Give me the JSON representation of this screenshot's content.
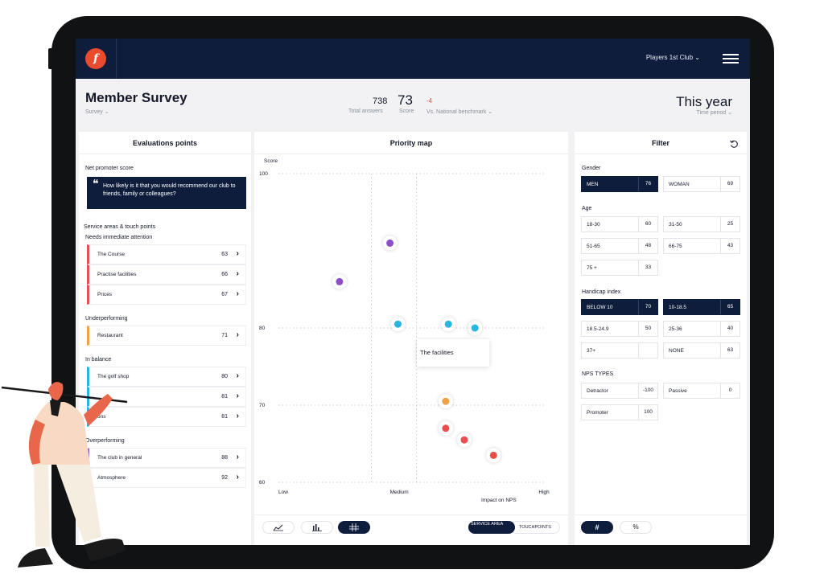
{
  "topbar": {
    "club_selector": "Players 1st Club ⌄",
    "logo_text": "f"
  },
  "header": {
    "title": "Member Survey",
    "subtitle": "Survey ⌄",
    "total_answers": "738",
    "total_answers_label": "Total answers",
    "score": "73",
    "score_label": "Score",
    "benchmark_value": "-4",
    "benchmark_label": "Vs. National benchmark ⌄",
    "time_period": "This year",
    "time_period_label": "Time period ⌄"
  },
  "evaluations": {
    "title": "Evaluations points",
    "nps_label": "Net promoter score",
    "nps_question": "How likely is it that you would recommend our club to friends, family or colleagues?",
    "service_label": "Service areas & touch points",
    "groups": [
      {
        "name": "Needs immediate attention",
        "color": "#e8504f",
        "items": [
          {
            "label": "The Course",
            "value": "63"
          },
          {
            "label": "Practise facilities",
            "value": "66"
          },
          {
            "label": "Prices",
            "value": "67"
          }
        ]
      },
      {
        "name": "Underperforming",
        "color": "#f3a04b",
        "items": [
          {
            "label": "Restaurant",
            "value": "71"
          }
        ]
      },
      {
        "name": "In balance",
        "color": "#2ab4e0",
        "items": [
          {
            "label": "The golf shop",
            "value": "80"
          },
          {
            "label": "",
            "value": "81"
          },
          {
            "label": "ons",
            "value": "81"
          }
        ]
      },
      {
        "name": "Overperforming",
        "color": "#8a4fc8",
        "items": [
          {
            "label": "The club in general",
            "value": "88"
          },
          {
            "label": "Atmosphere",
            "value": "92"
          }
        ]
      }
    ]
  },
  "priority": {
    "title": "Priority map",
    "tooltip": "The facilities",
    "tabs": [
      "SERVICE AREA",
      "TOUCHPOINTS"
    ]
  },
  "chart_data": {
    "type": "scatter",
    "ylabel": "Score",
    "xlabel": "Impact on NPS",
    "x_tick_labels": [
      "Low",
      "Medium",
      "High"
    ],
    "y_ticks": [
      100,
      80,
      70,
      60
    ],
    "ylim": [
      60,
      100
    ],
    "points": [
      {
        "x": 0.42,
        "y": 91,
        "color": "#8a4fc8"
      },
      {
        "x": 0.23,
        "y": 86,
        "color": "#8a4fc8"
      },
      {
        "x": 0.45,
        "y": 80.5,
        "color": "#2ab4e0"
      },
      {
        "x": 0.64,
        "y": 80.5,
        "color": "#2ab4e0"
      },
      {
        "x": 0.74,
        "y": 80,
        "color": "#2ab4e0"
      },
      {
        "x": 0.63,
        "y": 70.5,
        "color": "#f3a04b"
      },
      {
        "x": 0.63,
        "y": 67,
        "color": "#e8504f"
      },
      {
        "x": 0.7,
        "y": 65.5,
        "color": "#e8504f"
      },
      {
        "x": 0.81,
        "y": 63.5,
        "color": "#e8504f"
      }
    ]
  },
  "filter": {
    "title": "Filter",
    "gender_label": "Gender",
    "gender": [
      {
        "label": "MEN",
        "count": "76"
      },
      {
        "label": "WOMAN",
        "count": "69"
      }
    ],
    "age_label": "Age",
    "age": [
      {
        "label": "18-30",
        "count": "60"
      },
      {
        "label": "31-50",
        "count": "25"
      },
      {
        "label": "51-65",
        "count": "48"
      },
      {
        "label": "66-75",
        "count": "43"
      },
      {
        "label": "75 +",
        "count": "33"
      }
    ],
    "handicap_label": "Handicap index",
    "handicap": [
      {
        "label": "BELOW 10",
        "count": "70"
      },
      {
        "label": "10-18.5",
        "count": "65"
      },
      {
        "label": "18.5-24.9",
        "count": "50"
      },
      {
        "label": "25-36",
        "count": "40"
      },
      {
        "label": "37+",
        "count": ""
      },
      {
        "label": "NONE",
        "count": "63"
      }
    ],
    "nps_label": "NPS TYPES",
    "nps": [
      {
        "label": "Detractor",
        "count": "-100"
      },
      {
        "label": "Passive",
        "count": "0"
      },
      {
        "label": "Promoter",
        "count": "100"
      }
    ],
    "mode_hash": "#",
    "mode_percent": "%"
  },
  "colors": {
    "navy": "#0f1d3d",
    "accent": "#ea4a2d"
  }
}
